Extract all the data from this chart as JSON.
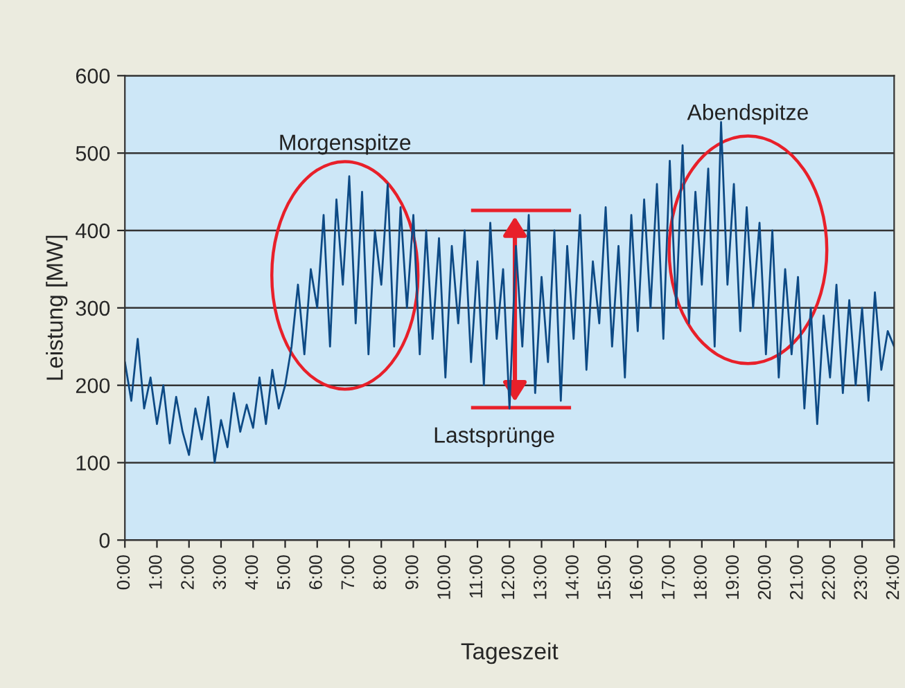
{
  "chart_data": {
    "type": "line",
    "xlabel": "Tageszeit",
    "ylabel": "Leistung [MW]",
    "annotations": [
      "Morgenspitze",
      "Abendspitze",
      "Lastsprünge"
    ],
    "x": [
      0,
      0.2,
      0.4,
      0.6,
      0.8,
      1,
      1.2,
      1.4,
      1.6,
      1.8,
      2,
      2.2,
      2.4,
      2.6,
      2.8,
      3,
      3.2,
      3.4,
      3.6,
      3.8,
      4,
      4.2,
      4.4,
      4.6,
      4.8,
      5,
      5.2,
      5.4,
      5.6,
      5.8,
      6,
      6.2,
      6.4,
      6.6,
      6.8,
      7,
      7.2,
      7.4,
      7.6,
      7.8,
      8,
      8.2,
      8.4,
      8.6,
      8.8,
      9,
      9.2,
      9.4,
      9.6,
      9.8,
      10,
      10.2,
      10.4,
      10.6,
      10.8,
      11,
      11.2,
      11.4,
      11.6,
      11.8,
      12,
      12.2,
      12.4,
      12.6,
      12.8,
      13,
      13.2,
      13.4,
      13.6,
      13.8,
      14,
      14.2,
      14.4,
      14.6,
      14.8,
      15,
      15.2,
      15.4,
      15.6,
      15.8,
      16,
      16.2,
      16.4,
      16.6,
      16.8,
      17,
      17.2,
      17.4,
      17.6,
      17.8,
      18,
      18.2,
      18.4,
      18.6,
      18.8,
      19,
      19.2,
      19.4,
      19.6,
      19.8,
      20,
      20.2,
      20.4,
      20.6,
      20.8,
      21,
      21.2,
      21.4,
      21.6,
      21.8,
      22,
      22.2,
      22.4,
      22.6,
      22.8,
      23,
      23.2,
      23.4,
      23.6,
      23.8,
      24
    ],
    "series": [
      {
        "color": "#0d4a85",
        "values": [
          230,
          180,
          260,
          170,
          210,
          150,
          200,
          125,
          185,
          140,
          110,
          170,
          130,
          185,
          100,
          155,
          120,
          190,
          140,
          175,
          145,
          210,
          150,
          220,
          170,
          200,
          250,
          330,
          240,
          350,
          300,
          420,
          250,
          440,
          330,
          470,
          280,
          450,
          240,
          400,
          330,
          460,
          250,
          430,
          300,
          420,
          240,
          400,
          260,
          390,
          210,
          380,
          280,
          400,
          230,
          360,
          200,
          410,
          260,
          350,
          170,
          380,
          250,
          420,
          190,
          340,
          230,
          400,
          180,
          380,
          260,
          420,
          220,
          360,
          280,
          430,
          250,
          380,
          210,
          420,
          270,
          440,
          300,
          460,
          260,
          490,
          300,
          510,
          280,
          450,
          330,
          480,
          250,
          540,
          330,
          460,
          270,
          430,
          300,
          410,
          240,
          400,
          210,
          350,
          240,
          340,
          170,
          300,
          150,
          290,
          210,
          330,
          190,
          310,
          200,
          300,
          180,
          320,
          220,
          270,
          250
        ]
      }
    ],
    "xlim": [
      0,
      24
    ],
    "xticks": [
      {
        "value": 0,
        "label": "0:00"
      },
      {
        "value": 1,
        "label": "1:00"
      },
      {
        "value": 2,
        "label": "2:00"
      },
      {
        "value": 3,
        "label": "3:00"
      },
      {
        "value": 4,
        "label": "4:00"
      },
      {
        "value": 5,
        "label": "5:00"
      },
      {
        "value": 6,
        "label": "6:00"
      },
      {
        "value": 7,
        "label": "7:00"
      },
      {
        "value": 8,
        "label": "8:00"
      },
      {
        "value": 9,
        "label": "9:00"
      },
      {
        "value": 10,
        "label": "10:00"
      },
      {
        "value": 11,
        "label": "11:00"
      },
      {
        "value": 12,
        "label": "12:00"
      },
      {
        "value": 13,
        "label": "13:00"
      },
      {
        "value": 14,
        "label": "14:00"
      },
      {
        "value": 15,
        "label": "15:00"
      },
      {
        "value": 16,
        "label": "16:00"
      },
      {
        "value": 17,
        "label": "17:00"
      },
      {
        "value": 18,
        "label": "18:00"
      },
      {
        "value": 19,
        "label": "19:00"
      },
      {
        "value": 20,
        "label": "20:00"
      },
      {
        "value": 21,
        "label": "21:00"
      },
      {
        "value": 22,
        "label": "22:00"
      },
      {
        "value": 23,
        "label": "23:00"
      },
      {
        "value": 24,
        "label": "24:00"
      }
    ],
    "ylim": [
      0,
      600
    ],
    "yticks": [
      0,
      100,
      200,
      300,
      400,
      500,
      600
    ],
    "grid": "y",
    "marker": "none",
    "line_style": "solid",
    "legend": false
  }
}
